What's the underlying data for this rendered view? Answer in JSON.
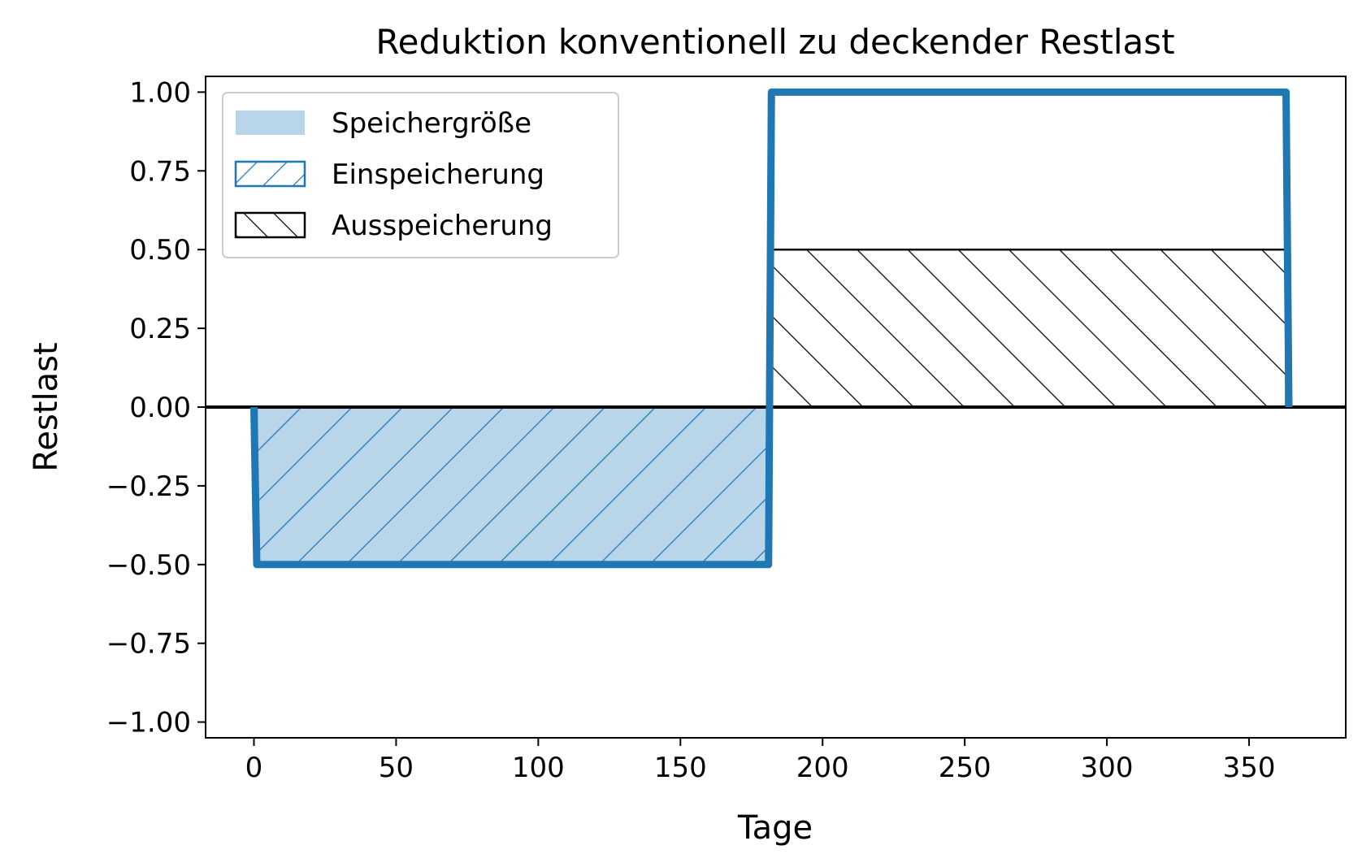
{
  "chart_data": {
    "type": "area",
    "title": "Reduktion konventionell zu deckender Restlast",
    "xlabel": "Tage",
    "ylabel": "Restlast",
    "xlim": [
      -17,
      384
    ],
    "ylim": [
      -1.05,
      1.05
    ],
    "xticks": [
      0,
      50,
      100,
      150,
      200,
      250,
      300,
      350
    ],
    "xtick_labels": [
      "0",
      "50",
      "100",
      "150",
      "200",
      "250",
      "300",
      "350"
    ],
    "yticks": [
      1.0,
      0.75,
      0.5,
      0.25,
      0.0,
      -0.25,
      -0.5,
      -0.75,
      -1.0
    ],
    "ytick_labels": [
      "1.00",
      "0.75",
      "0.50",
      "0.25",
      "0.00",
      "−0.25",
      "−0.50",
      "−0.75",
      "−1.00"
    ],
    "legend_position": "top-left",
    "legend": [
      {
        "label": "Speichergröße",
        "style": "filled"
      },
      {
        "label": "Einspeicherung",
        "style": "hatch /"
      },
      {
        "label": "Ausspeicherung",
        "style": "hatch \\"
      }
    ],
    "series": [
      {
        "name": "Restlast",
        "color": "#1f77b4",
        "x": [
          0,
          1,
          181,
          182,
          363,
          364
        ],
        "y": [
          0.0,
          -0.5,
          -0.5,
          1.0,
          1.0,
          0.0
        ]
      }
    ],
    "regions": [
      {
        "name": "Speichergröße",
        "x_range": [
          1,
          181
        ],
        "y_range": [
          -0.5,
          0.0
        ],
        "color": "#b9d5ea"
      },
      {
        "name": "Einspeicherung",
        "x_range": [
          1,
          181
        ],
        "y_range": [
          -0.5,
          0.0
        ],
        "color": "#1f77b4",
        "hatch": "/"
      },
      {
        "name": "Ausspeicherung",
        "x_range": [
          182,
          363
        ],
        "y_range": [
          0.0,
          0.5
        ],
        "color": "#000000",
        "hatch": "\\"
      }
    ],
    "zero_line": {
      "y": 0.0,
      "color": "#000000"
    }
  }
}
